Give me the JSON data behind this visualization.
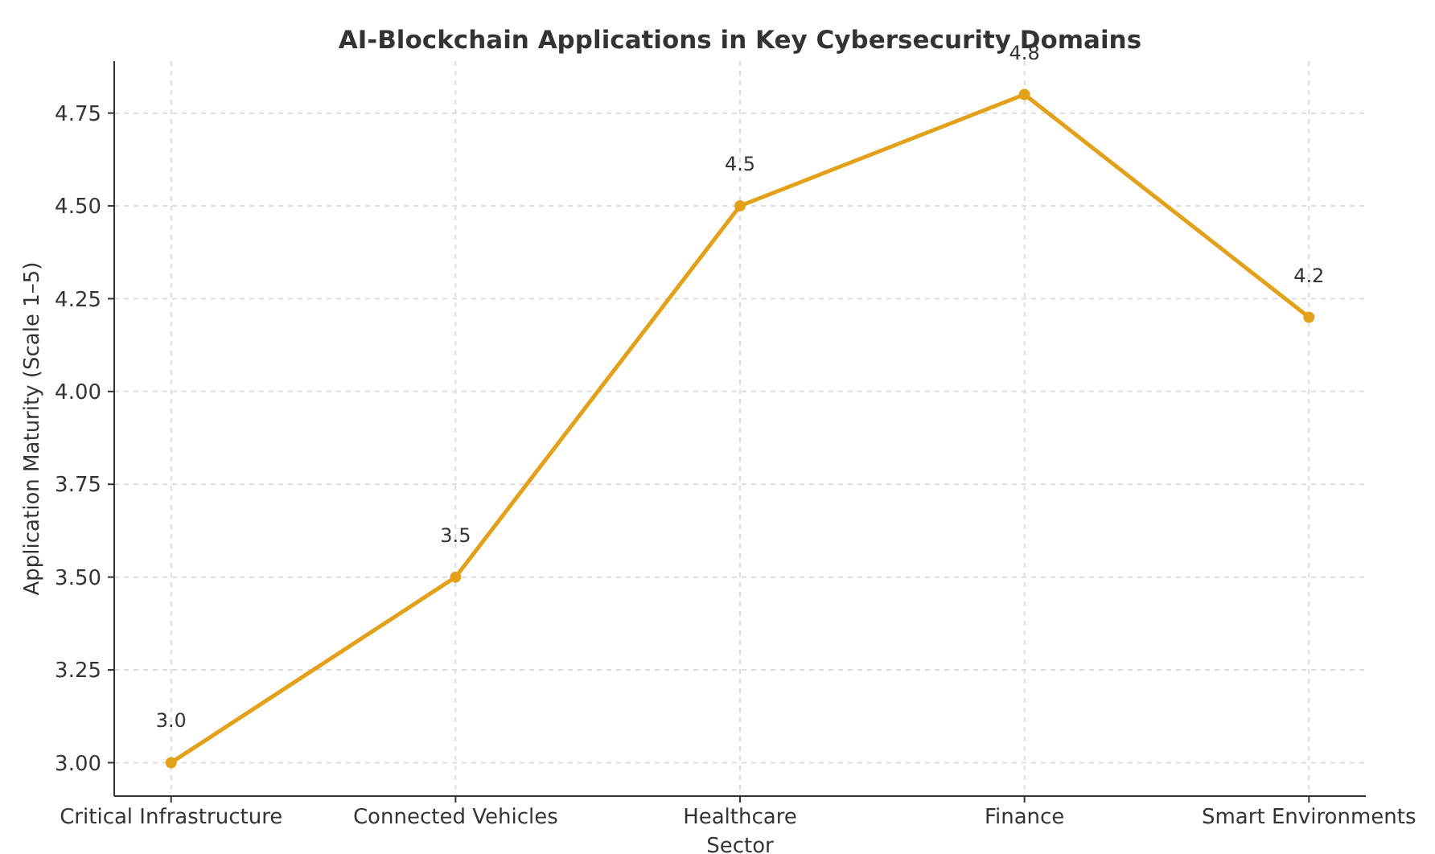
{
  "chart_data": {
    "type": "line",
    "title": "AI-Blockchain Applications in Key Cybersecurity Domains",
    "xlabel": "Sector",
    "ylabel": "Application Maturity (Scale 1–5)",
    "categories": [
      "Critical Infrastructure",
      "Connected Vehicles",
      "Healthcare",
      "Finance",
      "Smart Environments"
    ],
    "series": [
      {
        "color": "#e3a018",
        "values": [
          3.0,
          3.5,
          4.5,
          4.8,
          4.2
        ],
        "value_labels": [
          "3.0",
          "3.5",
          "4.5",
          "4.8",
          "4.2"
        ]
      }
    ],
    "ylim": [
      2.91,
      4.89
    ],
    "yticks": [
      {
        "value": 3,
        "label": "3.00"
      },
      {
        "value": 3.25,
        "label": "3.25"
      },
      {
        "value": 3.5,
        "label": "3.50"
      },
      {
        "value": 3.75,
        "label": "3.75"
      },
      {
        "value": 4,
        "label": "4.00"
      },
      {
        "value": 4.25,
        "label": "4.25"
      },
      {
        "value": 4.5,
        "label": "4.50"
      },
      {
        "value": 4.75,
        "label": "4.75"
      }
    ],
    "grid": true,
    "marker": "circle",
    "line_style": "solid"
  }
}
